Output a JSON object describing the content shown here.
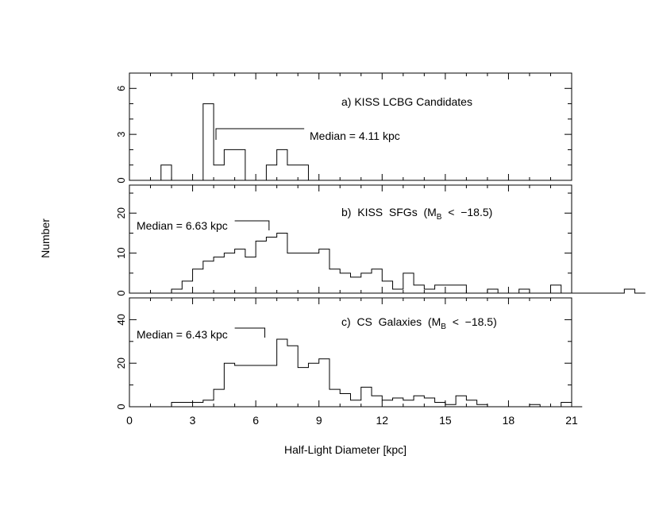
{
  "figure": {
    "ylabel": "Number",
    "xlabel": "Half-Light Diameter [kpc]",
    "xlim": [
      0,
      21
    ],
    "xticks": [
      0,
      3,
      6,
      9,
      12,
      15,
      18,
      21
    ]
  },
  "chart_data": [
    {
      "type": "bar",
      "histogram": "step",
      "title": "a) KISS LCBG Candidates",
      "median_label": "Median = 4.11 kpc",
      "median_value": 4.11,
      "xlim": [
        0,
        21
      ],
      "ylim": [
        0,
        7
      ],
      "yticks": [
        0,
        3,
        6
      ],
      "bin_width": 0.5,
      "bin_edges_start": 1.0,
      "values": [
        0,
        1,
        0,
        0,
        0,
        5,
        1,
        2,
        2,
        0,
        0,
        1,
        2,
        1,
        1,
        0
      ]
    },
    {
      "type": "bar",
      "histogram": "step",
      "title": "b) KISS SFGs (M_B < −18.5)",
      "title_parts": {
        "prefix": "b)  KISS  SFGs  (M",
        "subscript": "B",
        "suffix": "  <  −18.5)"
      },
      "median_label": "Median = 6.63 kpc",
      "median_value": 6.63,
      "xlim": [
        0,
        21
      ],
      "ylim": [
        0,
        27
      ],
      "yticks": [
        0,
        10,
        20
      ],
      "bin_width": 0.5,
      "bin_edges_start": 2.0,
      "values": [
        1,
        3,
        6,
        8,
        9,
        10,
        11,
        9,
        13,
        14,
        15,
        10,
        10,
        10,
        11,
        6,
        5,
        4,
        5,
        6,
        3,
        1,
        5,
        2,
        1,
        2,
        2,
        2,
        0,
        0,
        1,
        0,
        0,
        1,
        0,
        0,
        2,
        0,
        0,
        0,
        0,
        0,
        0,
        1,
        0
      ]
    },
    {
      "type": "bar",
      "histogram": "step",
      "title": "c) CS Galaxies (M_B < −18.5)",
      "title_parts": {
        "prefix": "c)  CS  Galaxies  (M",
        "subscript": "B",
        "suffix": "  <  −18.5)"
      },
      "median_label": "Median = 6.43 kpc",
      "median_value": 6.43,
      "xlim": [
        0,
        21
      ],
      "ylim": [
        0,
        50
      ],
      "yticks": [
        0,
        20,
        40
      ],
      "bin_width": 0.5,
      "bin_edges_start": 1.0,
      "values": [
        0,
        0,
        2,
        2,
        2,
        3,
        8,
        20,
        19,
        19,
        19,
        19,
        31,
        28,
        18,
        20,
        22,
        8,
        6,
        3,
        9,
        5,
        3,
        4,
        3,
        5,
        4,
        2,
        1,
        5,
        3,
        1,
        0,
        0,
        0,
        0,
        1,
        0,
        0,
        2,
        0
      ]
    }
  ]
}
